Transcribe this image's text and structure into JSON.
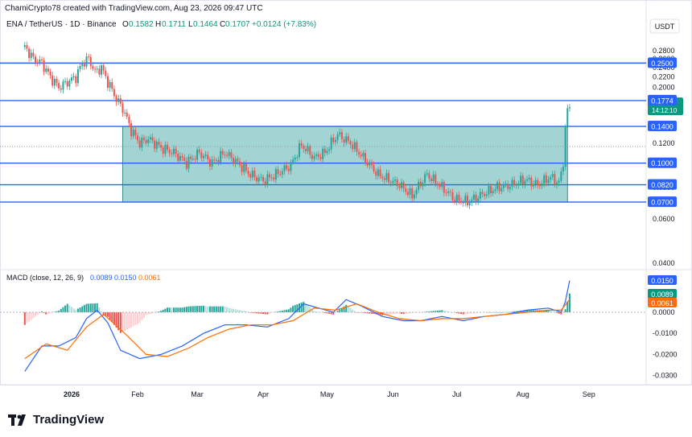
{
  "header": {
    "created_line": "ChamiCrypto78 created with TradingView.com, Aug 23, 2026 09:47 UTC",
    "symbol": "ENA / TetherUS · 1D · Binance",
    "o_label": "O",
    "o_value": "0.1582",
    "h_label": "H",
    "h_value": "0.1711",
    "l_label": "L",
    "l_value": "0.1464",
    "c_label": "C",
    "c_value": "0.1707",
    "change": "+0.0124 (+7.83%)",
    "currency": "USDT"
  },
  "macd_header": {
    "label": "MACD (close, 12, 26, 9)",
    "v1": "0.0089",
    "v2": "0.0150",
    "v3": "0.0061"
  },
  "colors": {
    "up": "#26a69a",
    "down": "#ef5350",
    "level": "#2962ff",
    "box": "#84c5c5",
    "macd": "#2962ff",
    "signal": "#ff6d00"
  },
  "brand": "TradingView",
  "chart_data": [
    {
      "type": "candlestick",
      "title": "ENA / TetherUS · 1D · Binance",
      "y_scale": "log",
      "y_ticks": [
        "0.2800",
        "0.2600",
        "0.2400",
        "0.2200",
        "0.2000",
        "0.1200",
        "0.1000",
        "0.0800",
        "0.0600",
        "0.0400"
      ],
      "x_ticks": [
        "2026",
        "Feb",
        "Mar",
        "Apr",
        "May",
        "Jun",
        "Jul",
        "Aug",
        "Sep"
      ],
      "horizontal_levels": [
        0.25,
        0.1774,
        0.14,
        0.1,
        0.082,
        0.07
      ],
      "level_labels": [
        "0.2500",
        "0.1774",
        "0.1400",
        "0.1000",
        "0.0820",
        "0.0700"
      ],
      "price_label": "0.1707",
      "countdown": "14:12:10",
      "range_box": {
        "y_top": 0.14,
        "y_bottom": 0.07,
        "x_start": "2026-01-25",
        "x_end": "2026-08-22"
      },
      "close_series": [
        [
          "2025-12-10",
          0.29
        ],
        [
          "2025-12-14",
          0.26
        ],
        [
          "2025-12-18",
          0.25
        ],
        [
          "2025-12-22",
          0.22
        ],
        [
          "2025-12-26",
          0.2
        ],
        [
          "2025-12-30",
          0.21
        ],
        [
          "2026-01-03",
          0.22
        ],
        [
          "2026-01-06",
          0.25
        ],
        [
          "2026-01-09",
          0.26
        ],
        [
          "2026-01-12",
          0.23
        ],
        [
          "2026-01-15",
          0.24
        ],
        [
          "2026-01-18",
          0.21
        ],
        [
          "2026-01-22",
          0.18
        ],
        [
          "2026-01-25",
          0.165
        ],
        [
          "2026-01-29",
          0.135
        ],
        [
          "2026-02-02",
          0.12
        ],
        [
          "2026-02-06",
          0.125
        ],
        [
          "2026-02-12",
          0.115
        ],
        [
          "2026-02-18",
          0.11
        ],
        [
          "2026-02-24",
          0.1
        ],
        [
          "2026-03-02",
          0.11
        ],
        [
          "2026-03-08",
          0.1
        ],
        [
          "2026-03-14",
          0.11
        ],
        [
          "2026-03-20",
          0.1
        ],
        [
          "2026-03-26",
          0.09
        ],
        [
          "2026-04-01",
          0.085
        ],
        [
          "2026-04-07",
          0.09
        ],
        [
          "2026-04-14",
          0.098
        ],
        [
          "2026-04-19",
          0.118
        ],
        [
          "2026-04-25",
          0.105
        ],
        [
          "2026-04-30",
          0.11
        ],
        [
          "2026-05-06",
          0.13
        ],
        [
          "2026-05-12",
          0.12
        ],
        [
          "2026-05-18",
          0.105
        ],
        [
          "2026-05-25",
          0.09
        ],
        [
          "2026-05-31",
          0.085
        ],
        [
          "2026-06-04",
          0.082
        ],
        [
          "2026-06-10",
          0.074
        ],
        [
          "2026-06-17",
          0.09
        ],
        [
          "2026-06-24",
          0.08
        ],
        [
          "2026-06-30",
          0.072
        ],
        [
          "2026-07-06",
          0.07
        ],
        [
          "2026-07-13",
          0.075
        ],
        [
          "2026-07-20",
          0.08
        ],
        [
          "2026-07-27",
          0.082
        ],
        [
          "2026-08-02",
          0.086
        ],
        [
          "2026-08-08",
          0.082
        ],
        [
          "2026-08-14",
          0.088
        ],
        [
          "2026-08-18",
          0.083
        ],
        [
          "2026-08-20",
          0.1
        ],
        [
          "2026-08-21",
          0.14
        ],
        [
          "2026-08-22",
          0.1582
        ],
        [
          "2026-08-23",
          0.1707
        ]
      ]
    },
    {
      "type": "line",
      "title": "MACD (close, 12, 26, 9)",
      "y_ticks": [
        "0.0000",
        "-0.0100",
        "-0.0200",
        "-0.0300"
      ],
      "value_labels": [
        "0.0150",
        "0.0089",
        "0.0061"
      ],
      "series": [
        {
          "name": "MACD",
          "points": [
            [
              "2025-12-10",
              -0.028
            ],
            [
              "2025-12-18",
              -0.016
            ],
            [
              "2025-12-26",
              -0.016
            ],
            [
              "2026-01-03",
              -0.012
            ],
            [
              "2026-01-08",
              -0.003
            ],
            [
              "2026-01-13",
              0.001
            ],
            [
              "2026-01-18",
              -0.005
            ],
            [
              "2026-01-24",
              -0.018
            ],
            [
              "2026-02-02",
              -0.022
            ],
            [
              "2026-02-12",
              -0.02
            ],
            [
              "2026-02-22",
              -0.016
            ],
            [
              "2026-03-04",
              -0.01
            ],
            [
              "2026-03-14",
              -0.006
            ],
            [
              "2026-03-24",
              -0.006
            ],
            [
              "2026-04-03",
              -0.007
            ],
            [
              "2026-04-13",
              -0.003
            ],
            [
              "2026-04-20",
              0.004
            ],
            [
              "2026-04-27",
              0.002
            ],
            [
              "2026-05-04",
              0.0
            ],
            [
              "2026-05-10",
              0.006
            ],
            [
              "2026-05-17",
              0.003
            ],
            [
              "2026-05-27",
              -0.002
            ],
            [
              "2026-06-06",
              -0.004
            ],
            [
              "2026-06-14",
              -0.004
            ],
            [
              "2026-06-24",
              -0.002
            ],
            [
              "2026-07-04",
              -0.004
            ],
            [
              "2026-07-14",
              -0.002
            ],
            [
              "2026-07-24",
              -0.001
            ],
            [
              "2026-08-03",
              0.001
            ],
            [
              "2026-08-13",
              0.002
            ],
            [
              "2026-08-19",
              0.0
            ],
            [
              "2026-08-21",
              0.005
            ],
            [
              "2026-08-23",
              0.015
            ]
          ]
        },
        {
          "name": "Signal",
          "points": [
            [
              "2025-12-10",
              -0.022
            ],
            [
              "2025-12-20",
              -0.015
            ],
            [
              "2025-12-30",
              -0.018
            ],
            [
              "2026-01-08",
              -0.007
            ],
            [
              "2026-01-16",
              -0.001
            ],
            [
              "2026-01-26",
              -0.01
            ],
            [
              "2026-02-05",
              -0.02
            ],
            [
              "2026-02-15",
              -0.021
            ],
            [
              "2026-02-25",
              -0.017
            ],
            [
              "2026-03-06",
              -0.012
            ],
            [
              "2026-03-16",
              -0.008
            ],
            [
              "2026-03-26",
              -0.006
            ],
            [
              "2026-04-05",
              -0.006
            ],
            [
              "2026-04-15",
              -0.004
            ],
            [
              "2026-04-25",
              0.002
            ],
            [
              "2026-05-05",
              0.001
            ],
            [
              "2026-05-15",
              0.004
            ],
            [
              "2026-05-25",
              0.0
            ],
            [
              "2026-06-04",
              -0.003
            ],
            [
              "2026-06-14",
              -0.004
            ],
            [
              "2026-06-24",
              -0.003
            ],
            [
              "2026-07-04",
              -0.003
            ],
            [
              "2026-07-14",
              -0.002
            ],
            [
              "2026-07-24",
              -0.001
            ],
            [
              "2026-08-03",
              0.0
            ],
            [
              "2026-08-13",
              0.001
            ],
            [
              "2026-08-19",
              0.001
            ],
            [
              "2026-08-23",
              0.0061
            ]
          ]
        }
      ]
    }
  ]
}
